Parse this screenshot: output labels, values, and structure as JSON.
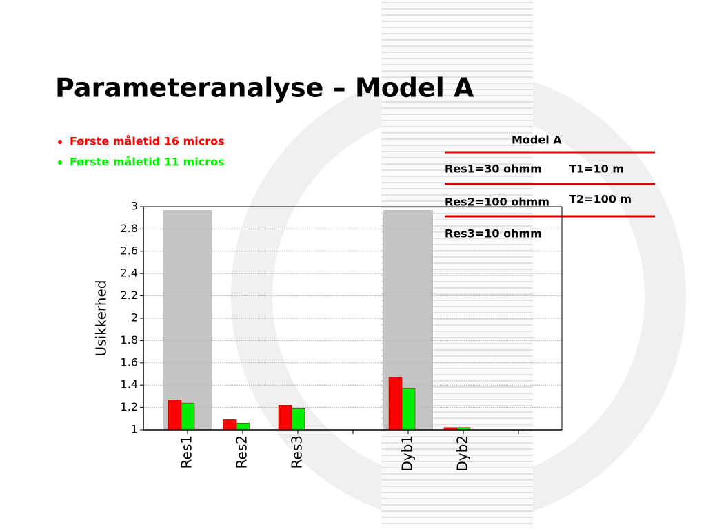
{
  "header": {
    "title": "Parameteranalyse – Model A"
  },
  "table": {
    "title": "Model A",
    "rows": [
      [
        "Res1=30 ohmm",
        "T1=10 m"
      ],
      [
        "Res2=100 ohmm",
        "T2=100 m"
      ],
      [
        "Res3=10 ohmm"
      ]
    ]
  },
  "chart_data": {
    "type": "bar",
    "y_label": "Usikkerhed",
    "categories": [
      "Res1",
      "Res2",
      "Res3",
      null,
      "Dyb1",
      "Dyb2",
      null
    ],
    "series": [
      {
        "name": "Første måletid 16 micros",
        "color": "#ff0000",
        "values": [
          1.27,
          1.09,
          1.22,
          null,
          1.47,
          1.02,
          null
        ]
      },
      {
        "name": "Første måletid 11 micros",
        "color": "#00ee00",
        "values": [
          1.24,
          1.06,
          1.19,
          null,
          1.37,
          1.02,
          null
        ]
      }
    ],
    "ylim": [
      1,
      3
    ],
    "yticks": [
      1,
      1.2,
      1.4,
      1.6,
      1.8,
      2,
      2.2,
      2.4,
      2.6,
      2.8,
      3
    ],
    "grid": true,
    "shaded_categories": [
      0,
      4
    ]
  }
}
